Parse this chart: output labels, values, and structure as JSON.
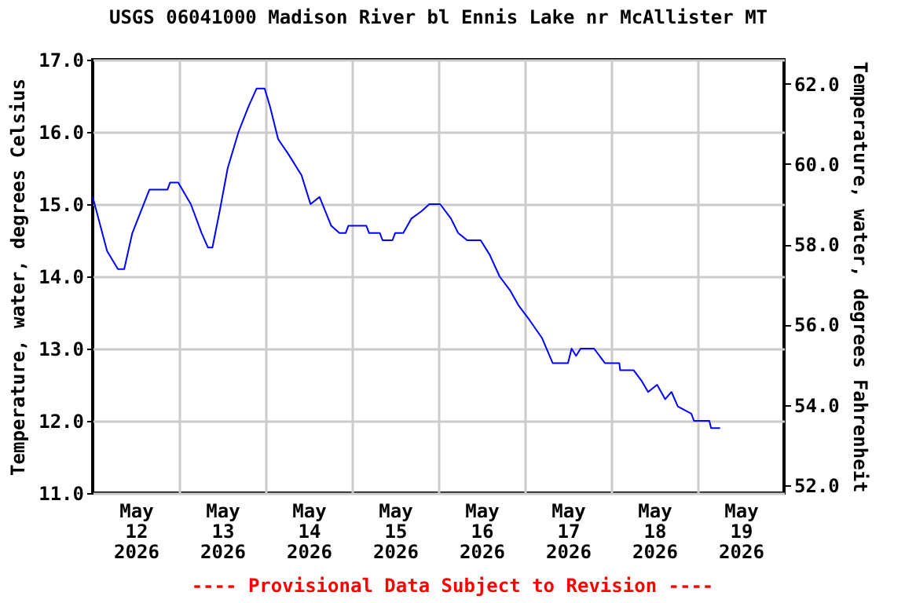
{
  "chart_data": {
    "type": "line",
    "title": "USGS 06041000 Madison River bl Ennis Lake nr McAllister MT",
    "ylabel": "Temperature, water, degrees Celsius",
    "y2label": "Temperature, water, degrees Fahrenheit",
    "annotations": [
      "---- Provisional Data Subject to Revision ----"
    ],
    "xlim": [
      "2026-05-12T00:00",
      "2026-05-20T00:00"
    ],
    "xticks": [
      {
        "value": "2026-05-12T12:00",
        "label": "May\n12\n2026"
      },
      {
        "value": "2026-05-13T00:00",
        "label": null
      },
      {
        "value": "2026-05-13T12:00",
        "label": "May\n13\n2026"
      },
      {
        "value": "2026-05-14T00:00",
        "label": null
      },
      {
        "value": "2026-05-14T12:00",
        "label": "May\n14\n2026"
      },
      {
        "value": "2026-05-15T00:00",
        "label": null
      },
      {
        "value": "2026-05-15T12:00",
        "label": "May\n15\n2026"
      },
      {
        "value": "2026-05-16T00:00",
        "label": null
      },
      {
        "value": "2026-05-16T12:00",
        "label": "May\n16\n2026"
      },
      {
        "value": "2026-05-17T00:00",
        "label": null
      },
      {
        "value": "2026-05-17T12:00",
        "label": "May\n17\n2026"
      },
      {
        "value": "2026-05-18T00:00",
        "label": null
      },
      {
        "value": "2026-05-18T12:00",
        "label": "May\n18\n2026"
      },
      {
        "value": "2026-05-19T00:00",
        "label": null
      },
      {
        "value": "2026-05-19T12:00",
        "label": "May\n19\n2026"
      }
    ],
    "ylim": [
      11,
      17
    ],
    "yticks": [
      {
        "value": 11,
        "label": "11.0"
      },
      {
        "value": 12,
        "label": "12.0"
      },
      {
        "value": 13,
        "label": "13.0"
      },
      {
        "value": 14,
        "label": "14.0"
      },
      {
        "value": 15,
        "label": "15.0"
      },
      {
        "value": 16,
        "label": "16.0"
      },
      {
        "value": 17,
        "label": "17.0"
      }
    ],
    "y2lim": [
      51.8,
      62.6
    ],
    "y2ticks": [
      {
        "value": 52,
        "label": "52.0"
      },
      {
        "value": 54,
        "label": "54.0"
      },
      {
        "value": 56,
        "label": "56.0"
      },
      {
        "value": 58,
        "label": "58.0"
      },
      {
        "value": 60,
        "label": "60.0"
      },
      {
        "value": 62,
        "label": "62.0"
      }
    ],
    "grid": true,
    "series": [
      {
        "color": "#0000ff",
        "x": [
          "2026-05-12T00:00",
          "2026-05-12T04:00",
          "2026-05-12T07:00",
          "2026-05-12T08:45",
          "2026-05-12T11:00",
          "2026-05-12T15:45",
          "2026-05-12T20:45",
          "2026-05-12T21:30",
          "2026-05-12T23:45",
          "2026-05-13T03:15",
          "2026-05-13T06:15",
          "2026-05-13T08:00",
          "2026-05-13T09:15",
          "2026-05-13T11:15",
          "2026-05-13T13:30",
          "2026-05-13T16:30",
          "2026-05-13T19:15",
          "2026-05-13T21:30",
          "2026-05-13T23:45",
          "2026-05-14T01:15",
          "2026-05-14T03:30",
          "2026-05-14T06:15",
          "2026-05-14T10:00",
          "2026-05-14T12:30",
          "2026-05-14T15:00",
          "2026-05-14T18:15",
          "2026-05-14T20:30",
          "2026-05-14T22:15",
          "2026-05-14T23:00",
          "2026-05-15T04:00",
          "2026-05-15T04:45",
          "2026-05-15T07:45",
          "2026-05-15T08:30",
          "2026-05-15T11:15",
          "2026-05-15T12:00",
          "2026-05-15T14:15",
          "2026-05-15T16:30",
          "2026-05-15T19:15",
          "2026-05-15T21:30",
          "2026-05-16T00:30",
          "2026-05-16T03:30",
          "2026-05-16T05:30",
          "2026-05-16T08:00",
          "2026-05-16T11:45",
          "2026-05-16T14:15",
          "2026-05-16T17:00",
          "2026-05-16T20:00",
          "2026-05-16T22:15",
          "2026-05-17T01:15",
          "2026-05-17T04:45",
          "2026-05-17T07:45",
          "2026-05-17T12:00",
          "2026-05-17T13:00",
          "2026-05-17T14:15",
          "2026-05-17T15:30",
          "2026-05-17T19:15",
          "2026-05-17T22:15",
          "2026-05-18T02:15",
          "2026-05-18T02:30",
          "2026-05-18T06:15",
          "2026-05-18T08:30",
          "2026-05-18T10:15",
          "2026-05-18T12:45",
          "2026-05-18T15:00",
          "2026-05-18T16:45",
          "2026-05-18T18:30",
          "2026-05-18T22:15",
          "2026-05-18T23:00",
          "2026-05-19T03:15",
          "2026-05-19T03:45",
          "2026-05-19T06:15"
        ],
        "values": [
          15.1,
          14.35,
          14.1,
          14.1,
          14.6,
          15.2,
          15.2,
          15.3,
          15.3,
          15.0,
          14.6,
          14.4,
          14.4,
          14.9,
          15.5,
          16.0,
          16.35,
          16.6,
          16.6,
          16.35,
          15.9,
          15.7,
          15.4,
          15.0,
          15.1,
          14.7,
          14.6,
          14.6,
          14.7,
          14.7,
          14.6,
          14.6,
          14.5,
          14.5,
          14.6,
          14.6,
          14.8,
          14.9,
          15.0,
          15.0,
          14.8,
          14.6,
          14.5,
          14.5,
          14.3,
          14.0,
          13.8,
          13.6,
          13.4,
          13.15,
          12.8,
          12.8,
          13.0,
          12.9,
          13.0,
          13.0,
          12.8,
          12.8,
          12.7,
          12.7,
          12.55,
          12.4,
          12.5,
          12.3,
          12.4,
          12.2,
          12.1,
          12.0,
          12.0,
          11.9,
          11.9
        ]
      }
    ]
  }
}
